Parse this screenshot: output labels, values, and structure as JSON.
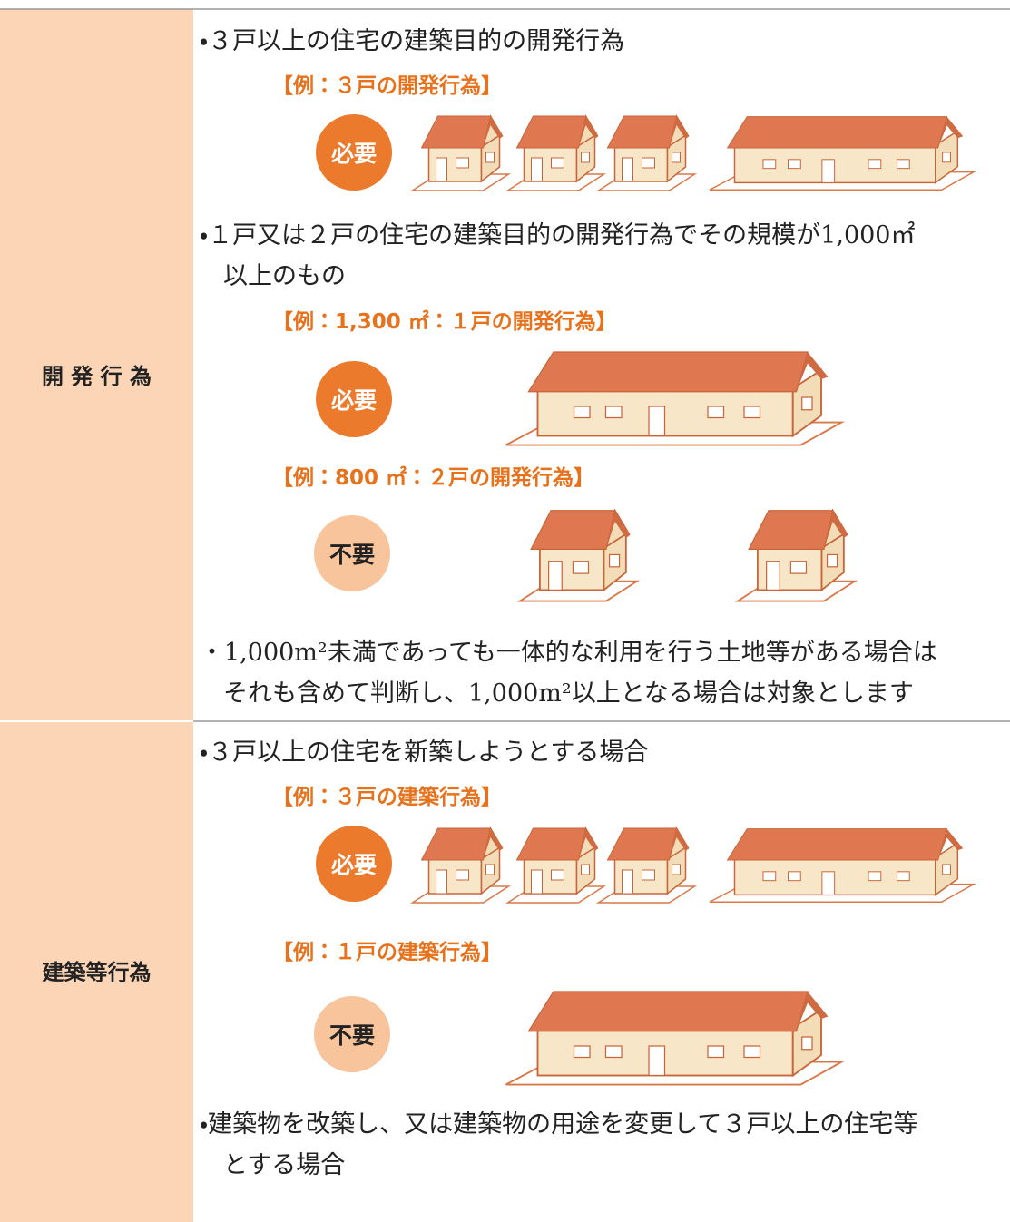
{
  "rows": [
    {
      "label": "開 発 行 為",
      "item1": {
        "text": "・３戸以上の住宅の建築目的の開発行為",
        "example": "【例：３戸の開発行為】",
        "badge": "必要"
      },
      "item2": {
        "lines": [
          "・１戸又は２戸の住宅の建築目的の開発行為でその規模が1,000㎡",
          "以上のもの"
        ],
        "examples": [
          {
            "label": "【例：1,300 ㎡：１戸の開発行為】",
            "badge": "必要"
          },
          {
            "label": "【例：800 ㎡：２戸の開発行為】",
            "badge": "不要"
          }
        ]
      },
      "note": [
        "・1,000m²未満であっても一体的な利用を行う土地等がある場合は",
        "それも含めて判断し、1,000m²以上となる場合は対象とします"
      ]
    },
    {
      "label": "建築等行為",
      "item1": {
        "text": "・３戸以上の住宅を新築しようとする場合",
        "example": "【例：３戸の建築行為】",
        "badge": "必要"
      },
      "item2": {
        "example": "【例：１戸の建築行為】",
        "badge": "不要"
      },
      "note": [
        "・建築物を改築し、又は建築物の用途を変更して３戸以上の住宅等",
        "とする場合"
      ]
    }
  ]
}
